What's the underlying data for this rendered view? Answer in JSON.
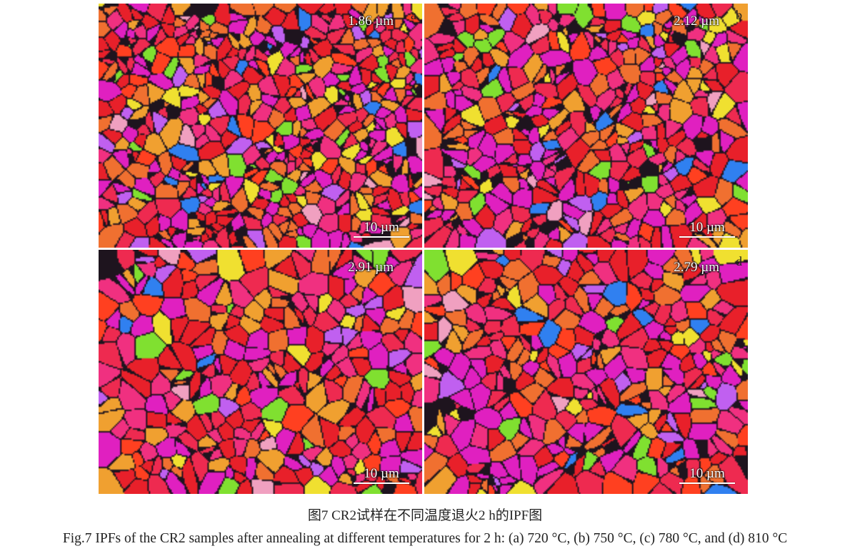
{
  "panels": [
    {
      "letter": "a",
      "grain_size": "1.86 µm",
      "scale_bar": "10 µm",
      "seed": 11
    },
    {
      "letter": "b",
      "grain_size": "2.12 µm",
      "scale_bar": "10 µm",
      "seed": 23
    },
    {
      "letter": "c",
      "grain_size": "2.91 µm",
      "scale_bar": "10 µm",
      "seed": 37
    },
    {
      "letter": "d",
      "grain_size": "2.79 µm",
      "scale_bar": "10 µm",
      "seed": 53
    }
  ],
  "caption": {
    "zh": "图7  CR2试样在不同温度退火2 h的IPF图",
    "en": "Fig.7  IPFs of the CR2 samples after annealing at different temperatures for 2 h: (a) 720 °C, (b) 750 °C, (c) 780 °C, and (d) 810 °C"
  },
  "colors": [
    "#e8202a",
    "#ee2a50",
    "#e020c0",
    "#f03080",
    "#f07030",
    "#f0a030",
    "#f0e030",
    "#80e030",
    "#3080f0",
    "#c060f0",
    "#f0a0c0",
    "#ff4020"
  ]
}
